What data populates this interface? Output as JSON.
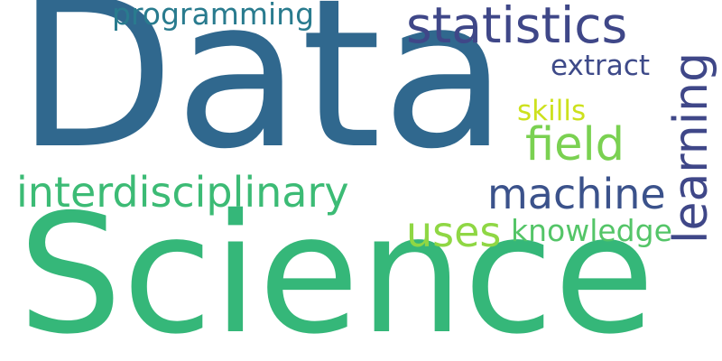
{
  "wordcloud": {
    "words": [
      {
        "id": "data",
        "text": "Data",
        "color": "#30688E",
        "vertical": false
      },
      {
        "id": "science",
        "text": "Science",
        "color": "#35B779",
        "vertical": false
      },
      {
        "id": "interdisciplinary",
        "text": "interdisciplinary",
        "color": "#3CBB75",
        "vertical": false
      },
      {
        "id": "statistics",
        "text": "statistics",
        "color": "#3F4788",
        "vertical": false
      },
      {
        "id": "programming",
        "text": "programming",
        "color": "#297B8E",
        "vertical": false
      },
      {
        "id": "machine",
        "text": "machine",
        "color": "#3B528B",
        "vertical": false
      },
      {
        "id": "learning",
        "text": "learning",
        "color": "#3F4788",
        "vertical": true
      },
      {
        "id": "field",
        "text": "field",
        "color": "#7AD151",
        "vertical": false
      },
      {
        "id": "extract",
        "text": "extract",
        "color": "#3E4A89",
        "vertical": false
      },
      {
        "id": "skills",
        "text": "skills",
        "color": "#CDE11D",
        "vertical": false
      },
      {
        "id": "uses",
        "text": "uses",
        "color": "#8FD744",
        "vertical": false
      },
      {
        "id": "knowledge",
        "text": "knowledge",
        "color": "#54C568",
        "vertical": false
      }
    ]
  }
}
